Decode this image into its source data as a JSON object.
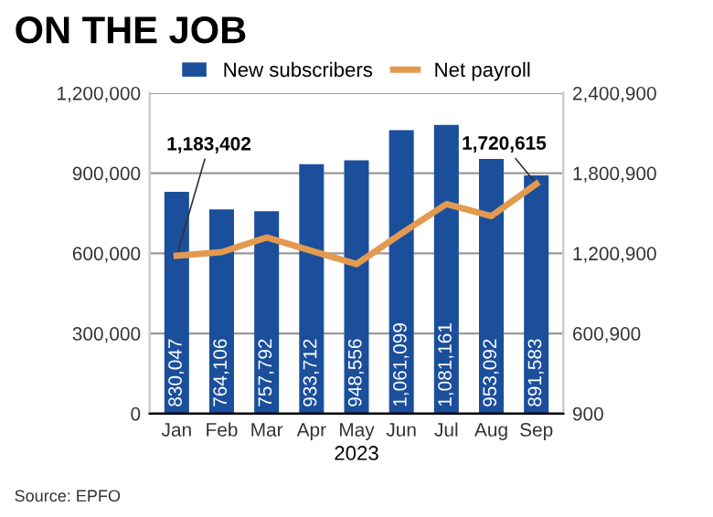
{
  "chart_data": {
    "type": "bar",
    "title": "ON THE JOB",
    "xlabel": "2023",
    "categories": [
      "Jan",
      "Feb",
      "Mar",
      "Apr",
      "May",
      "Jun",
      "Jul",
      "Aug",
      "Sep"
    ],
    "series": [
      {
        "name": "New subscribers",
        "color": "#1b4f9c",
        "values": [
          830047,
          764106,
          757792,
          933712,
          948556,
          1061099,
          1081161,
          953092,
          891583
        ],
        "value_labels": [
          "830,047",
          "764,106",
          "757,792",
          "933,712",
          "948,556",
          "1,061,099",
          "1,081,161",
          "953,092",
          "891,583"
        ]
      },
      {
        "name": "Net payroll",
        "type": "line",
        "axis": "y2",
        "color": "#e39a4f",
        "values": [
          1183402,
          1210000,
          1320000,
          1220000,
          1120000,
          1350000,
          1570000,
          1480000,
          1720615
        ],
        "value_labels": [
          "1,183,402",
          null,
          null,
          null,
          null,
          null,
          null,
          null,
          "1,720,615"
        ]
      }
    ],
    "ylim": [
      0,
      1200000
    ],
    "yticks": [
      {
        "value": 0,
        "label": "0"
      },
      {
        "value": 300000,
        "label": "300,000"
      },
      {
        "value": 600000,
        "label": "600,000"
      },
      {
        "value": 900000,
        "label": "900,000"
      },
      {
        "value": 1200000,
        "label": "1,200,000"
      }
    ],
    "y2lim": [
      900,
      2400900
    ],
    "y2ticks": [
      900,
      {
        "value": 600900,
        "label": "600,900"
      },
      {
        "value": 1200900,
        "label": "1,200,900"
      },
      {
        "value": 1800900,
        "label": "1,800,900"
      },
      {
        "value": 2400900,
        "label": "2,400,900"
      }
    ],
    "grid": "y",
    "legend": "top",
    "annotations": [
      "Source: EPFO"
    ]
  }
}
